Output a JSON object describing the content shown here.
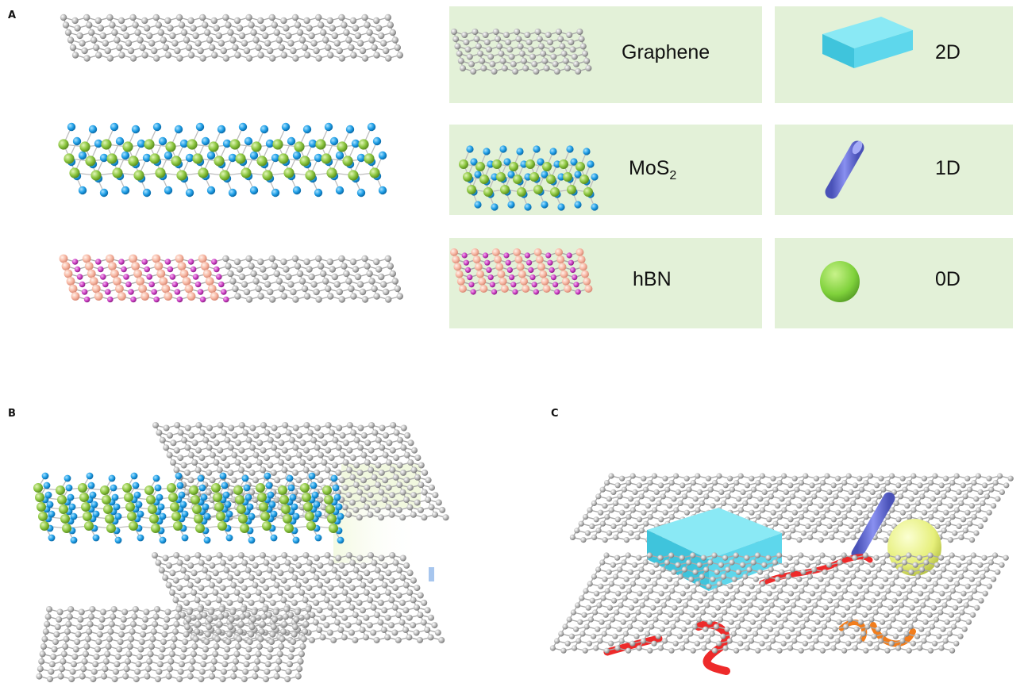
{
  "panels": {
    "a": "A",
    "b": "B",
    "c": "C"
  },
  "legend": {
    "materials": [
      {
        "label": "Graphene",
        "sub": ""
      },
      {
        "label": "MoS",
        "sub": "2"
      },
      {
        "label": "hBN",
        "sub": ""
      }
    ],
    "dimensions": [
      "2D",
      "1D",
      "0D"
    ]
  },
  "colors": {
    "box_bg": "#e3f1d8",
    "carbon_atom": "#b7b7b7",
    "mo_atom": "#8cc63f",
    "s_atom": "#1e9ee6",
    "b_atom": "#f7b7a3",
    "n_atom": "#cc3fc4",
    "slab_2d": "#5ed7ec",
    "rod_1d": "#6f79e0",
    "sphere_0d": "#7fd13b",
    "strand_red": "#ee2a2a",
    "strand_orange": "#f27d1c",
    "sphere_yellow": "#e6ef7a"
  }
}
